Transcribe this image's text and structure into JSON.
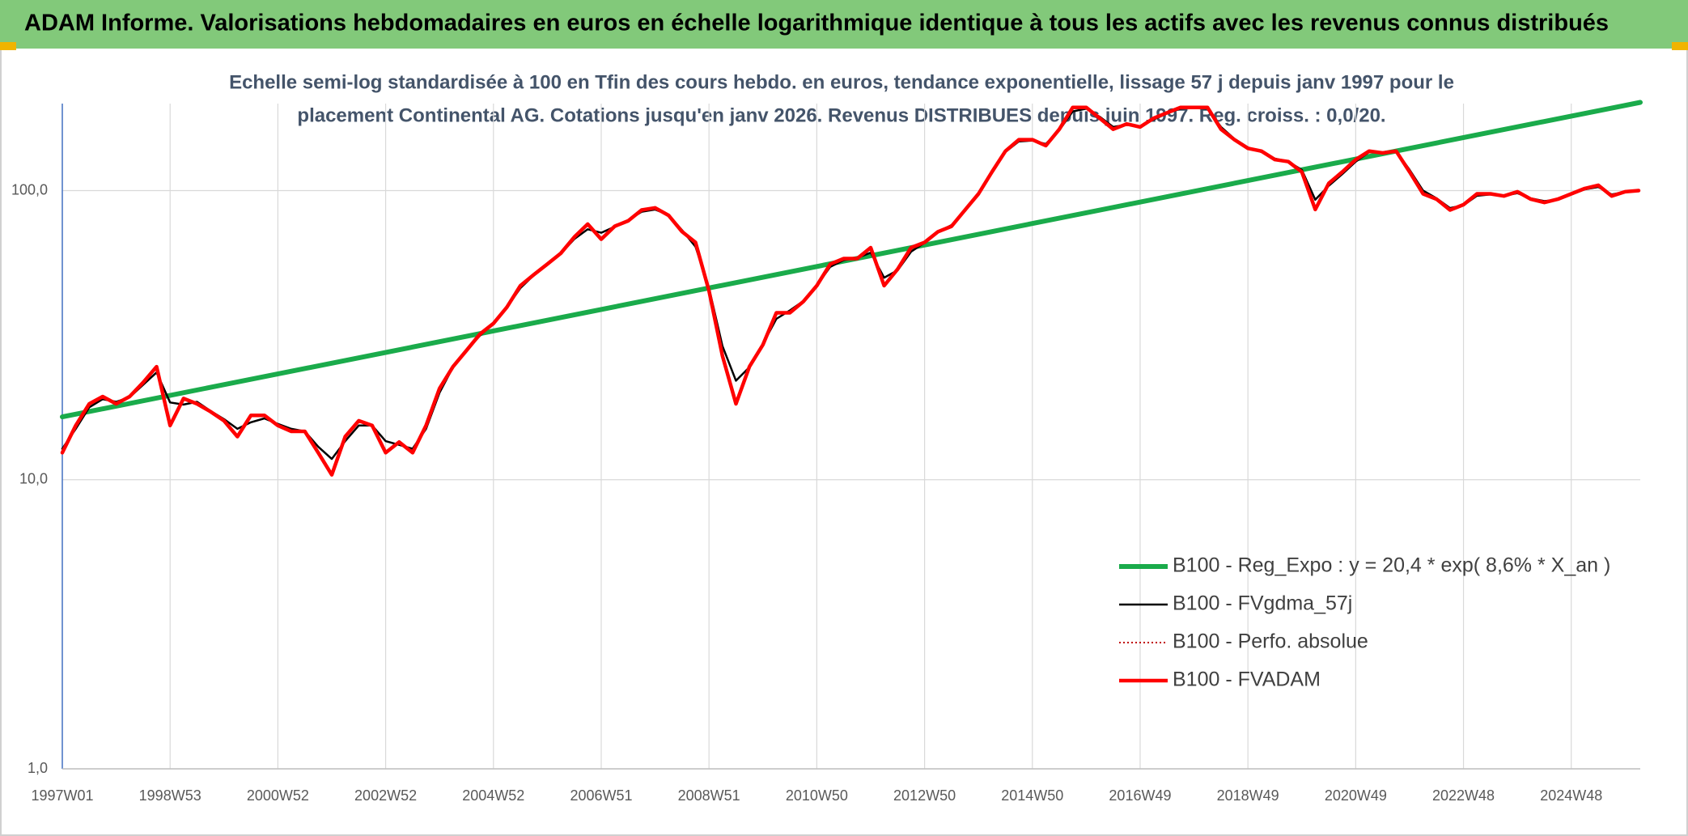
{
  "chart_data": {
    "type": "line",
    "title": "ADAM Informe. Valorisations hebdomadaires en euros en échelle logarithmique identique à tous les actifs avec les revenus connus distribués",
    "subtitle": [
      "Echelle semi-log standardisée à 100 en Tfin des cours hebdo. en euros, tendance exponentielle, lissage 57 j depuis janv 1997 pour le",
      "placement Continental AG. Cotations jusqu'en janv 2026. Revenus DISTRIBUES depuis juin 1997. Reg. croiss. : 0,0/20."
    ],
    "log_scale": true,
    "grid": true,
    "legend": "lower right",
    "xlim": [
      1997,
      2026.28
    ],
    "xticks": [
      {
        "value": 1997,
        "label": "1997W01"
      },
      {
        "value": 1999,
        "label": "1998W53"
      },
      {
        "value": 2001,
        "label": "2000W52"
      },
      {
        "value": 2003,
        "label": "2002W52"
      },
      {
        "value": 2005,
        "label": "2004W52"
      },
      {
        "value": 2007,
        "label": "2006W51"
      },
      {
        "value": 2009,
        "label": "2008W51"
      },
      {
        "value": 2011,
        "label": "2010W50"
      },
      {
        "value": 2013,
        "label": "2012W50"
      },
      {
        "value": 2015,
        "label": "2014W50"
      },
      {
        "value": 2017,
        "label": "2016W49"
      },
      {
        "value": 2019,
        "label": "2018W49"
      },
      {
        "value": 2021,
        "label": "2020W49"
      },
      {
        "value": 2023,
        "label": "2022W48"
      },
      {
        "value": 2025,
        "label": "2024W48"
      }
    ],
    "ylim": [
      1,
      200
    ],
    "yticks": [
      {
        "value": 1,
        "label": "1,0"
      },
      {
        "value": 10,
        "label": "10,0"
      },
      {
        "value": 100,
        "label": "100,0"
      }
    ],
    "x": [
      1997,
      1997.25,
      1997.5,
      1997.75,
      1998,
      1998.25,
      1998.5,
      1998.75,
      1999,
      1999.25,
      1999.5,
      1999.75,
      2000,
      2000.25,
      2000.5,
      2000.75,
      2001,
      2001.25,
      2001.5,
      2001.75,
      2002,
      2002.25,
      2002.5,
      2002.75,
      2003,
      2003.25,
      2003.5,
      2003.75,
      2004,
      2004.25,
      2004.5,
      2004.75,
      2005,
      2005.25,
      2005.5,
      2005.75,
      2006,
      2006.25,
      2006.5,
      2006.75,
      2007,
      2007.25,
      2007.5,
      2007.75,
      2008,
      2008.25,
      2008.5,
      2008.75,
      2009,
      2009.25,
      2009.5,
      2009.75,
      2010,
      2010.25,
      2010.5,
      2010.75,
      2011,
      2011.25,
      2011.5,
      2011.75,
      2012,
      2012.25,
      2012.5,
      2012.75,
      2013,
      2013.25,
      2013.5,
      2013.75,
      2014,
      2014.25,
      2014.5,
      2014.75,
      2015,
      2015.25,
      2015.5,
      2015.75,
      2016,
      2016.25,
      2016.5,
      2016.75,
      2017,
      2017.25,
      2017.5,
      2017.75,
      2018,
      2018.25,
      2018.5,
      2018.75,
      2019,
      2019.25,
      2019.5,
      2019.75,
      2020,
      2020.25,
      2020.5,
      2020.75,
      2021,
      2021.25,
      2021.5,
      2021.75,
      2022,
      2022.25,
      2022.5,
      2022.75,
      2023,
      2023.25,
      2023.5,
      2023.75,
      2024,
      2024.25,
      2024.5,
      2024.75,
      2025,
      2025.25,
      2025.5,
      2025.75,
      2026,
      2026.25
    ],
    "series": [
      {
        "name": "B100 - Reg_Expo : y = 20,4 * exp( 8,6% *  X_an )",
        "color": "#1aab4b",
        "line_width": 6,
        "x": [
          1997,
          2026.28
        ],
        "values": [
          16.5,
          202
        ]
      },
      {
        "name": "B100 - FVgdma_57j",
        "color": "#000000",
        "line_width": 2.5,
        "values": [
          12.8,
          15.0,
          17.8,
          19.0,
          18.6,
          19.3,
          21.3,
          23.5,
          18.5,
          18.2,
          18.6,
          17.3,
          16.2,
          15.0,
          15.8,
          16.3,
          15.6,
          15.0,
          14.7,
          13.0,
          11.8,
          13.6,
          15.4,
          15.4,
          13.6,
          13.2,
          12.8,
          15.0,
          20.0,
          24.5,
          28.0,
          31.5,
          34.8,
          39.5,
          46.0,
          51.0,
          55.5,
          60.5,
          68.0,
          73.5,
          71.5,
          75.0,
          79.0,
          84.5,
          86.0,
          82.5,
          73.0,
          64.0,
          46.0,
          29.0,
          22.0,
          24.5,
          29.5,
          36.0,
          38.5,
          41.5,
          47.0,
          54.5,
          57.5,
          58.5,
          61.0,
          50.0,
          53.0,
          61.5,
          66.0,
          72.0,
          76.0,
          85.0,
          97,
          115,
          136,
          148,
          149,
          145,
          162,
          188,
          192,
          180,
          166,
          169,
          167,
          176,
          185,
          192,
          193,
          192,
          166,
          151,
          141,
          136,
          129,
          126,
          118,
          93,
          104,
          114,
          126,
          136,
          135,
          137,
          118,
          100,
          94,
          87,
          89,
          96,
          97,
          96,
          98,
          94,
          92,
          93,
          97,
          101,
          103,
          97,
          99,
          100
        ]
      },
      {
        "name": "B100 - Perfo. absolue",
        "color": "#c00000",
        "line_width": 2,
        "line_style": "dotted",
        "values": [
          12.4,
          15.4,
          18.3,
          19.4,
          18.3,
          19.4,
          21.7,
          24.6,
          15.4,
          19.1,
          18.3,
          17.2,
          16.0,
          14.1,
          16.7,
          16.7,
          15.4,
          14.7,
          14.7,
          12.4,
          10.4,
          14.1,
          16.0,
          15.4,
          12.4,
          13.5,
          12.4,
          15.4,
          20.7,
          24.6,
          28.0,
          31.9,
          34.7,
          39.5,
          46.9,
          51.2,
          55.7,
          60.7,
          69.1,
          76.6,
          67.9,
          75.3,
          78.6,
          85.7,
          87.2,
          82.1,
          72.1,
          66.2,
          45.0,
          26.8,
          18.3,
          24.6,
          29.3,
          37.8,
          37.8,
          41.3,
          46.9,
          55.7,
          58.2,
          58.2,
          63.5,
          46.9,
          53.5,
          63.5,
          66.2,
          72.1,
          75.3,
          85.7,
          97.5,
          116,
          137,
          150,
          150,
          143,
          163,
          194,
          194,
          178,
          163,
          170,
          166,
          178,
          186,
          194,
          194,
          194,
          163,
          150,
          140,
          137,
          128,
          126,
          116,
          86,
          106,
          116,
          128,
          137,
          135,
          137,
          116,
          97.5,
          93.4,
          85.7,
          89.4,
          97.5,
          97.5,
          95.8,
          99.1,
          93.4,
          91,
          93.4,
          97.5,
          101.7,
          104.4,
          95.8,
          99.1,
          100
        ]
      },
      {
        "name": "B100 - FVADAM",
        "color": "#ff0000",
        "line_width": 4.5,
        "values": [
          12.4,
          15.4,
          18.3,
          19.4,
          18.3,
          19.4,
          21.7,
          24.6,
          15.4,
          19.1,
          18.3,
          17.2,
          16.0,
          14.1,
          16.7,
          16.7,
          15.4,
          14.7,
          14.7,
          12.4,
          10.4,
          14.1,
          16.0,
          15.4,
          12.4,
          13.5,
          12.4,
          15.4,
          20.7,
          24.6,
          28.0,
          31.9,
          34.7,
          39.5,
          46.9,
          51.2,
          55.7,
          60.7,
          69.1,
          76.6,
          67.9,
          75.3,
          78.6,
          85.7,
          87.2,
          82.1,
          72.1,
          66.2,
          45.0,
          26.8,
          18.3,
          24.6,
          29.3,
          37.8,
          37.8,
          41.3,
          46.9,
          55.7,
          58.2,
          58.2,
          63.5,
          46.9,
          53.5,
          63.5,
          66.2,
          72.1,
          75.3,
          85.7,
          97.5,
          116,
          137,
          150,
          150,
          143,
          163,
          194,
          194,
          178,
          163,
          170,
          166,
          178,
          186,
          194,
          194,
          194,
          163,
          150,
          140,
          137,
          128,
          126,
          116,
          86,
          106,
          116,
          128,
          137,
          135,
          137,
          116,
          97.5,
          93.4,
          85.7,
          89.4,
          97.5,
          97.5,
          95.8,
          99.1,
          93.4,
          91,
          93.4,
          97.5,
          101.7,
          104.4,
          95.8,
          99.1,
          100
        ]
      }
    ]
  }
}
